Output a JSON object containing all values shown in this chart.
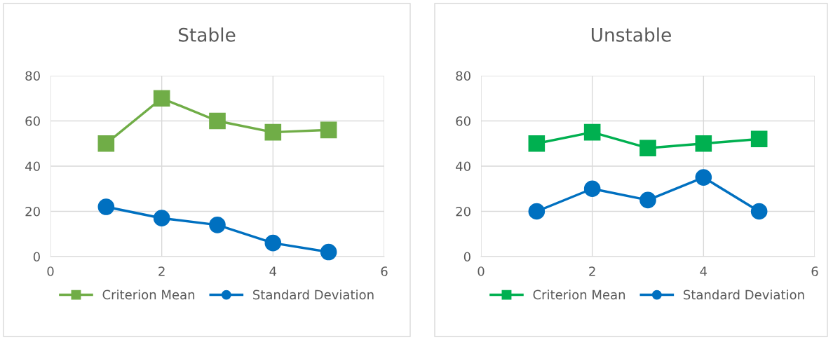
{
  "chart_data": [
    {
      "type": "line",
      "title": "Stable",
      "x": [
        1,
        2,
        3,
        4,
        5
      ],
      "xlim": [
        0,
        6
      ],
      "xticks": [
        0,
        2,
        4,
        6
      ],
      "ylim": [
        0,
        80
      ],
      "yticks": [
        0,
        20,
        40,
        60,
        80
      ],
      "grid": true,
      "legend": "bottom",
      "series": [
        {
          "name": "Criterion Mean",
          "color": "#70ad47",
          "marker": "square",
          "values": [
            50,
            70,
            60,
            55,
            56
          ]
        },
        {
          "name": "Standard Deviation",
          "color": "#0070c0",
          "marker": "circle",
          "values": [
            22,
            17,
            14,
            6,
            2
          ]
        }
      ]
    },
    {
      "type": "line",
      "title": "Unstable",
      "x": [
        1,
        2,
        3,
        4,
        5
      ],
      "xlim": [
        0,
        6
      ],
      "xticks": [
        0,
        2,
        4,
        6
      ],
      "ylim": [
        0,
        80
      ],
      "yticks": [
        0,
        20,
        40,
        60,
        80
      ],
      "grid": true,
      "legend": "bottom",
      "series": [
        {
          "name": "Criterion Mean",
          "color": "#00b050",
          "marker": "square",
          "values": [
            50,
            55,
            48,
            50,
            52
          ]
        },
        {
          "name": "Standard Deviation",
          "color": "#0070c0",
          "marker": "circle",
          "values": [
            20,
            30,
            25,
            35,
            20
          ]
        }
      ]
    }
  ]
}
